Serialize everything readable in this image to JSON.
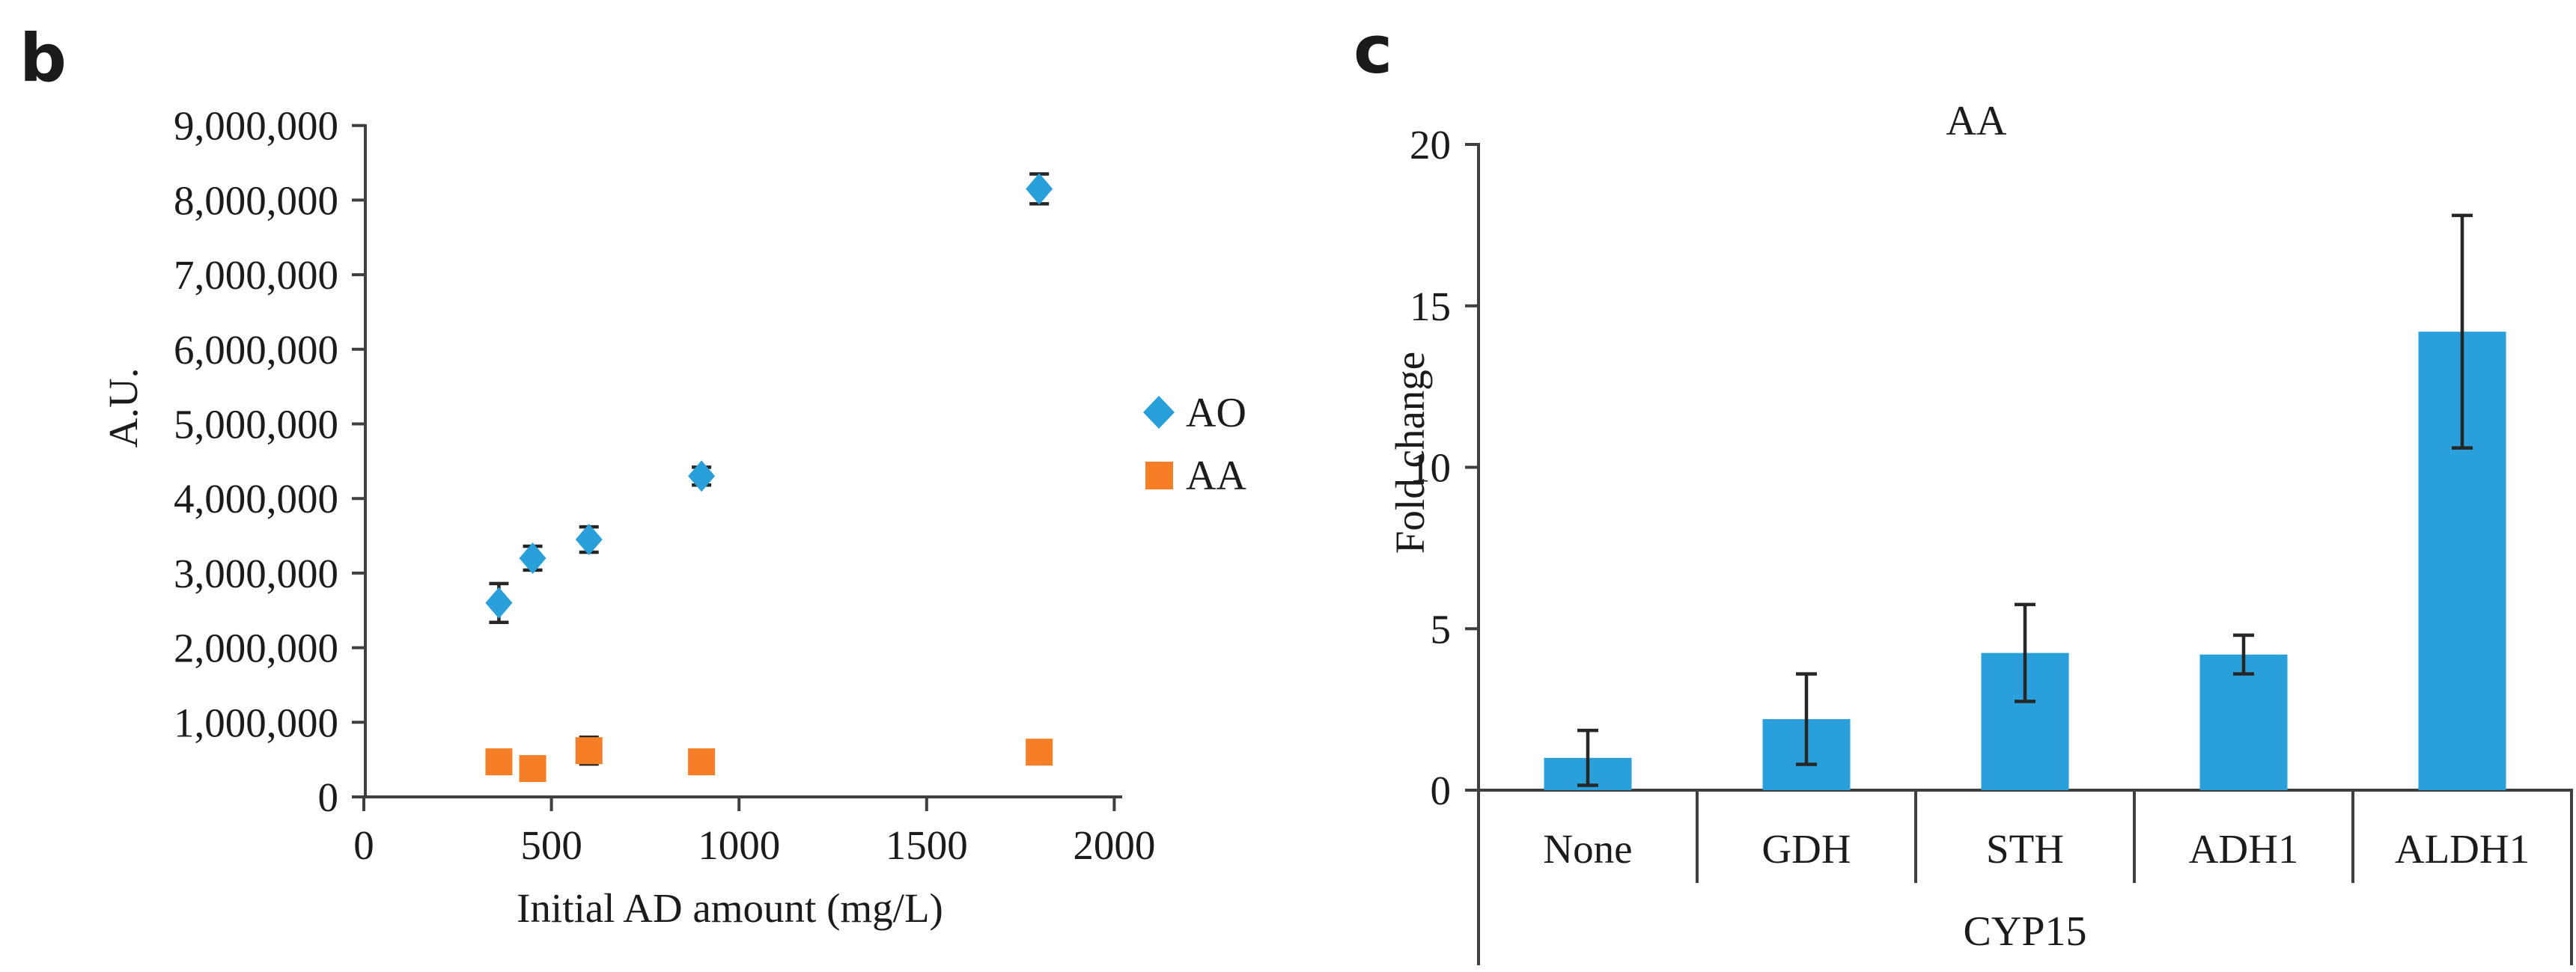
{
  "figure": {
    "background": "#ffffff",
    "panel_letters": {
      "b": "b",
      "c": "c"
    }
  },
  "colors": {
    "series_blue": "#29A0DA",
    "series_orange": "#F57E27",
    "axis": "#3f3f3f",
    "error_bar": "#262626",
    "text": "#1b1b1b"
  },
  "chart_data": [
    {
      "panel": "b",
      "type": "scatter",
      "xlabel": "Initial AD amount (mg/L)",
      "ylabel": "A.U.",
      "xlim": [
        0,
        2000
      ],
      "ylim": [
        0,
        9000000
      ],
      "grid": false,
      "legend_position": "right-middle",
      "xticks": [
        0,
        500,
        1000,
        1500,
        2000
      ],
      "xtick_labels": [
        "0",
        "500",
        "1000",
        "1500",
        "2000"
      ],
      "yticks": [
        0,
        1000000,
        2000000,
        3000000,
        4000000,
        5000000,
        6000000,
        7000000,
        8000000,
        9000000
      ],
      "ytick_labels": [
        "0",
        "1,000,000",
        "2,000,000",
        "3,000,000",
        "4,000,000",
        "5,000,000",
        "6,000,000",
        "7,000,000",
        "8,000,000",
        "9,000,000"
      ],
      "series": [
        {
          "name": "AO",
          "marker": "diamond",
          "color": "#29A0DA",
          "x": [
            360,
            450,
            600,
            900,
            1800
          ],
          "y": [
            2600000,
            3200000,
            3450000,
            4300000,
            8150000
          ],
          "yerr": [
            260000,
            160000,
            170000,
            120000,
            200000
          ]
        },
        {
          "name": "AA",
          "marker": "square",
          "color": "#F57E27",
          "x": [
            360,
            450,
            600,
            900,
            1800
          ],
          "y": [
            470000,
            380000,
            620000,
            470000,
            600000
          ],
          "yerr": [
            0,
            0,
            180000,
            0,
            0
          ]
        }
      ]
    },
    {
      "panel": "c",
      "type": "bar",
      "title": "AA",
      "ylabel": "Fold change",
      "group_label": "CYP15",
      "ylim": [
        0,
        20
      ],
      "grid": false,
      "yticks": [
        0,
        5,
        10,
        15,
        20
      ],
      "ytick_labels": [
        "0",
        "5",
        "10",
        "15",
        "20"
      ],
      "categories": [
        "None",
        "GDH",
        "STH",
        "ADH1",
        "ALDH1"
      ],
      "values": [
        1.0,
        2.2,
        4.25,
        4.2,
        14.2
      ],
      "errors": [
        0.85,
        1.4,
        1.5,
        0.6,
        3.6
      ],
      "bar_color": "#29A0DA"
    }
  ]
}
